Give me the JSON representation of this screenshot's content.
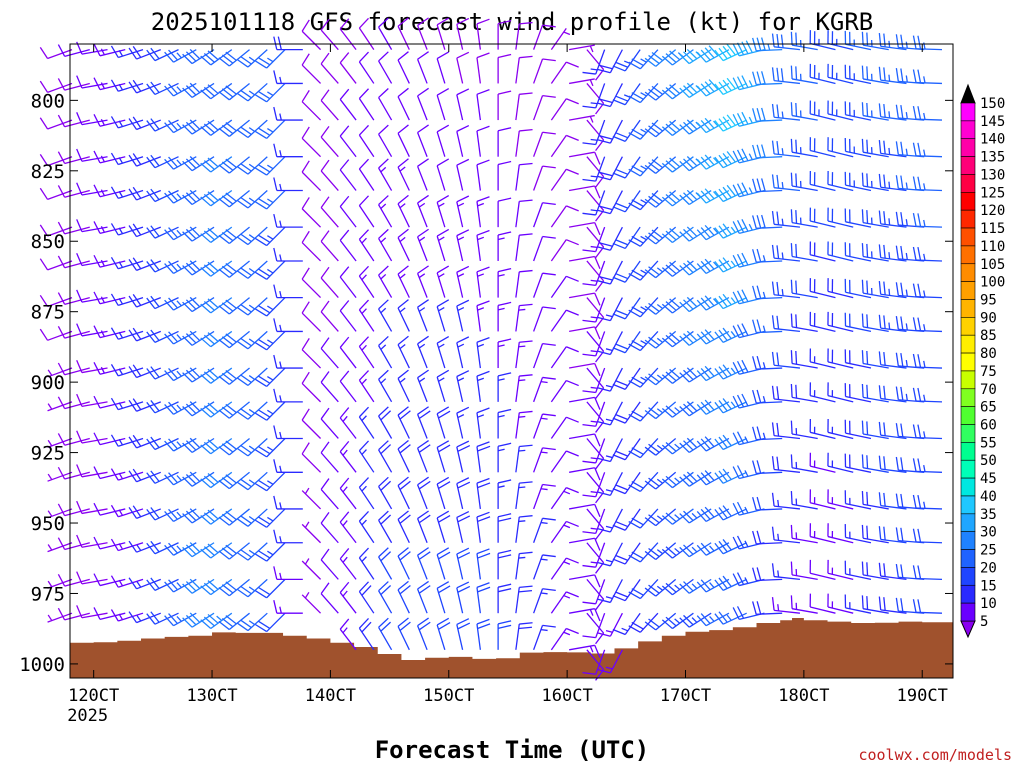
{
  "chart_data": {
    "type": "wind_barb_profile",
    "title": "2025101118 GFS forecast wind profile (kt) for KGRB",
    "xlabel": "Forecast Time (UTC)",
    "ylabel": "",
    "watermark": "coolwx.com/models",
    "x_axis": {
      "unit": "hours",
      "range": [
        118.0,
        192.6
      ],
      "ticks": [
        {
          "value": 120,
          "label": "120CT",
          "sublabel": "2025"
        },
        {
          "value": 130,
          "label": "130CT",
          "sublabel": ""
        },
        {
          "value": 140,
          "label": "140CT",
          "sublabel": ""
        },
        {
          "value": 150,
          "label": "150CT",
          "sublabel": ""
        },
        {
          "value": 160,
          "label": "160CT",
          "sublabel": ""
        },
        {
          "value": 170,
          "label": "170CT",
          "sublabel": ""
        },
        {
          "value": 180,
          "label": "180CT",
          "sublabel": ""
        },
        {
          "value": 190,
          "label": "190CT",
          "sublabel": ""
        }
      ]
    },
    "y_axis": {
      "unit": "hPa",
      "range": [
        780,
        1005
      ],
      "inverted": true,
      "ticks": [
        {
          "value": 800,
          "label": "800"
        },
        {
          "value": 825,
          "label": "825"
        },
        {
          "value": 850,
          "label": "850"
        },
        {
          "value": 875,
          "label": "875"
        },
        {
          "value": 900,
          "label": "900"
        },
        {
          "value": 925,
          "label": "925"
        },
        {
          "value": 950,
          "label": "950"
        },
        {
          "value": 975,
          "label": "975"
        },
        {
          "value": 1000,
          "label": "1000"
        }
      ]
    },
    "levels_hpa": [
      782,
      794,
      807,
      820,
      832,
      845,
      857,
      870,
      882,
      895,
      907,
      920,
      932,
      945,
      957,
      970,
      982,
      995
    ],
    "wind_keyframes": [
      {
        "time": 118.0,
        "dir": 250,
        "spd_top": 8,
        "spd_bot": 7
      },
      {
        "time": 121.0,
        "dir": 260,
        "spd_top": 12,
        "spd_bot": 8
      },
      {
        "time": 127.0,
        "dir": 245,
        "spd_top": 22,
        "spd_bot": 20
      },
      {
        "time": 131.0,
        "dir": 235,
        "spd_top": 30,
        "spd_bot": 34
      },
      {
        "time": 136.0,
        "dir": 225,
        "spd_top": 26,
        "spd_bot": 22
      },
      {
        "time": 139.0,
        "dir": 315,
        "spd_top": 9,
        "spd_bot": 7
      },
      {
        "time": 145.0,
        "dir": 330,
        "spd_top": 10,
        "spd_bot": 22
      },
      {
        "time": 152.0,
        "dir": 350,
        "spd_top": 9,
        "spd_bot": 22
      },
      {
        "time": 156.0,
        "dir": 10,
        "spd_top": 8,
        "spd_bot": 18
      },
      {
        "time": 159.0,
        "dir": 40,
        "spd_top": 7,
        "spd_bot": 14
      },
      {
        "time": 161.0,
        "dir": 120,
        "spd_top": 6,
        "spd_bot": 12
      },
      {
        "time": 163.0,
        "dir": 200,
        "spd_top": 16,
        "spd_bot": 12
      },
      {
        "time": 169.0,
        "dir": 230,
        "spd_top": 30,
        "spd_bot": 22
      },
      {
        "time": 175.0,
        "dir": 245,
        "spd_top": 42,
        "spd_bot": 26
      },
      {
        "time": 179.0,
        "dir": 275,
        "spd_top": 30,
        "spd_bot": 14
      },
      {
        "time": 183.0,
        "dir": 285,
        "spd_top": 24,
        "spd_bot": 10
      },
      {
        "time": 187.0,
        "dir": 280,
        "spd_top": 26,
        "spd_bot": 18
      },
      {
        "time": 192.6,
        "dir": 270,
        "spd_top": 27,
        "spd_bot": 22
      }
    ],
    "surface_pressure": {
      "times": [
        118.0,
        120,
        122,
        124,
        126,
        128,
        130,
        132,
        134,
        136,
        138,
        140,
        142,
        144,
        146,
        148,
        150,
        152,
        154,
        156,
        158,
        160,
        162,
        164,
        166,
        168,
        170,
        172,
        174,
        176,
        178,
        179,
        180,
        182,
        184,
        186,
        188,
        190,
        192.6
      ],
      "hpa": [
        992.5,
        992.3,
        991.8,
        991.0,
        990.4,
        990.0,
        988.8,
        989.0,
        989.0,
        990.0,
        991.0,
        992.5,
        994.0,
        996.5,
        998.6,
        997.8,
        997.5,
        998.2,
        998.0,
        996.0,
        995.8,
        995.9,
        996.3,
        994.5,
        992.0,
        990.0,
        988.6,
        988.0,
        987.0,
        985.5,
        984.5,
        983.7,
        984.5,
        985.0,
        985.5,
        985.4,
        985.0,
        985.2,
        985.5
      ]
    },
    "terrain_color": "#a0522d",
    "colorbar": {
      "unit": "kt",
      "labels": [
        "5",
        "10",
        "15",
        "20",
        "25",
        "30",
        "35",
        "40",
        "45",
        "50",
        "55",
        "60",
        "65",
        "70",
        "75",
        "80",
        "85",
        "90",
        "95",
        "100",
        "105",
        "110",
        "115",
        "120",
        "125",
        "130",
        "135",
        "140",
        "145",
        "150"
      ],
      "colors": [
        "#8a00f0",
        "#6a00ff",
        "#2a2aff",
        "#1f45ff",
        "#1f63ff",
        "#1f82ff",
        "#1fa6ff",
        "#1fc8ff",
        "#00e8e0",
        "#00ffb8",
        "#00ff90",
        "#30ff60",
        "#50ff30",
        "#80ff20",
        "#c8ff00",
        "#ffff00",
        "#ffee00",
        "#ffd200",
        "#ffb400",
        "#ffa000",
        "#ff8c00",
        "#ff7000",
        "#ff5000",
        "#ff2800",
        "#ff0000",
        "#ff0044",
        "#ff0078",
        "#ff00a8",
        "#ff00d2",
        "#ff00ff"
      ],
      "under_color": "#8a00f0",
      "over_color": "#000000"
    }
  }
}
